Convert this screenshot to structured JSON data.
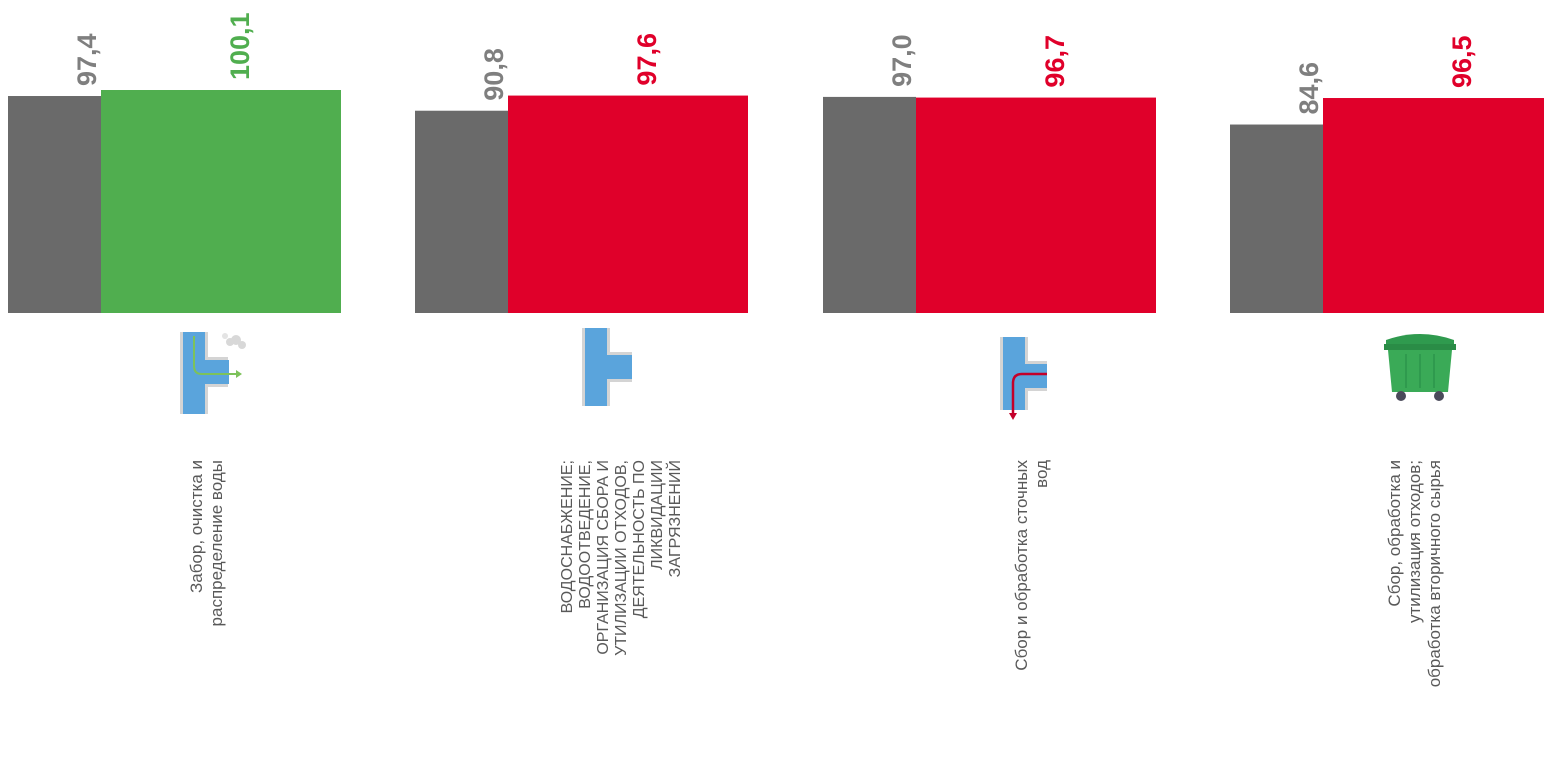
{
  "chart_data": {
    "type": "bar",
    "ylim": [
      0,
      100.1
    ],
    "categories": [
      [
        "Забор, очистка и",
        "распределение воды"
      ],
      [
        "ВОДОСНАБЖЕНИЕ;",
        "ВОДООТВЕДЕНИЕ,",
        "ОРГАНИЗАЦИЯ СБОРА И",
        "УТИЛИЗАЦИИ ОТХОДОВ,",
        "ДЕЯТЕЛЬНОСТЬ ПО",
        "ЛИКВИДАЦИИ",
        "ЗАГРЯЗНЕНИЙ"
      ],
      [
        "Сбор и обработка сточных",
        "вод"
      ],
      [
        "Сбор, обработка и",
        "утилизация отходов;",
        "обработка вторичного сырья"
      ]
    ],
    "series": [
      {
        "values": [
          97.4,
          90.8,
          97.0,
          84.6
        ],
        "labels": [
          "97,4",
          "90,8",
          "97,0",
          "84,6"
        ],
        "color": "#6a6a6a"
      },
      {
        "values": [
          100.1,
          97.6,
          96.7,
          96.5
        ],
        "labels": [
          "100,1",
          "97,6",
          "96,7",
          "96,5"
        ],
        "colors": [
          "#50ae4f",
          "#e0002a",
          "#e0002a",
          "#e0002a"
        ]
      }
    ],
    "label_colors": {
      "gray": "#7f7f7f",
      "green": "#50ae4f",
      "red": "#e0002a"
    },
    "icons": [
      "water-intake-pipe-icon",
      "water-pipe-tee-icon",
      "sewage-pipe-icon",
      "waste-container-icon"
    ]
  }
}
